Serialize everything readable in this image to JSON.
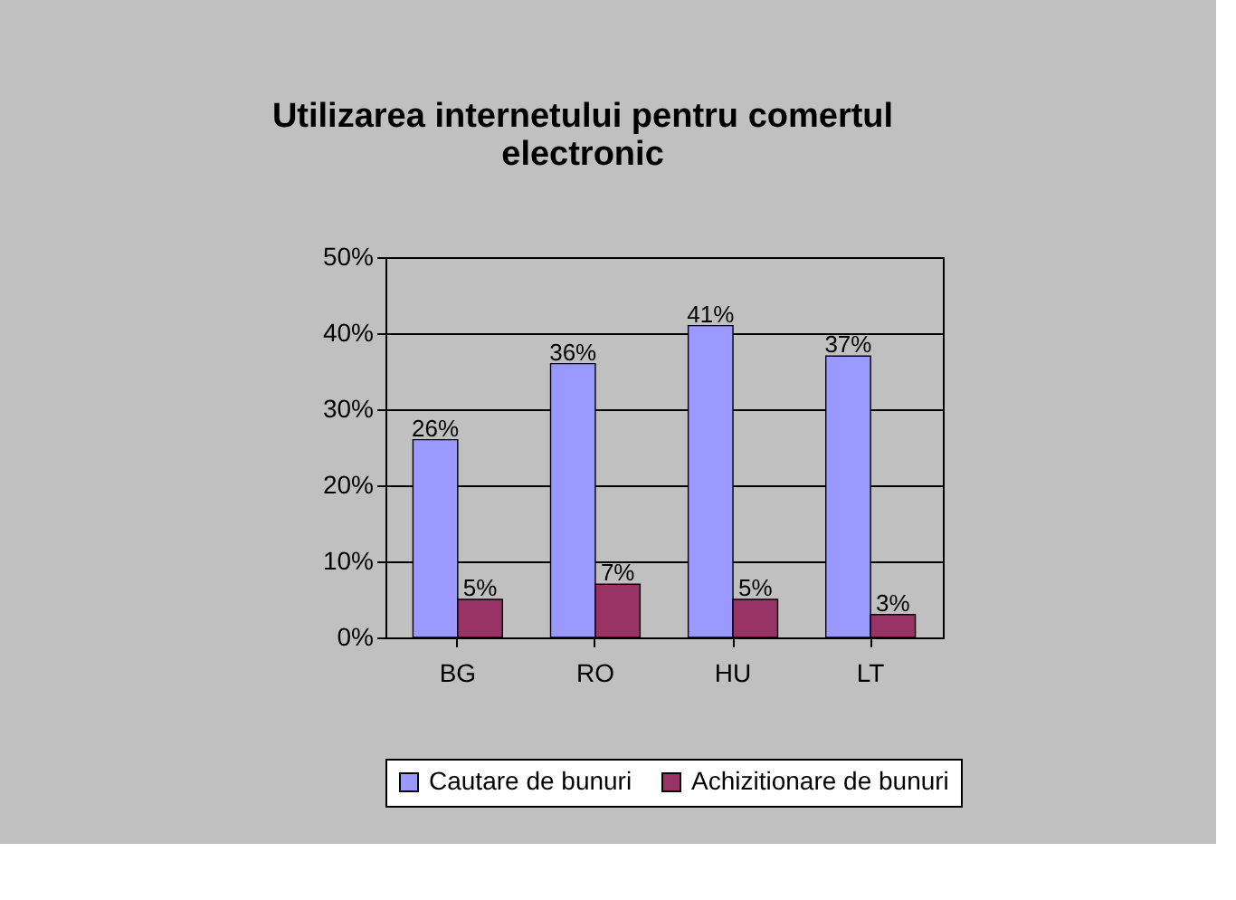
{
  "chart_data": {
    "type": "bar",
    "title": "Utilizarea internetului pentru comertul electronic",
    "categories": [
      "BG",
      "RO",
      "HU",
      "LT"
    ],
    "series": [
      {
        "name": "Cautare de bunuri",
        "color": "#9999ff",
        "values": [
          26,
          36,
          41,
          37
        ],
        "value_labels": [
          "26%",
          "36%",
          "41%",
          "37%"
        ]
      },
      {
        "name": "Achizitionare de bunuri",
        "color": "#993366",
        "values": [
          5,
          7,
          5,
          3
        ],
        "value_labels": [
          "5%",
          "7%",
          "5%",
          "3%"
        ]
      }
    ],
    "ylim": [
      0,
      50
    ],
    "yticks": [
      {
        "value": 0,
        "label": "0%"
      },
      {
        "value": 10,
        "label": "10%"
      },
      {
        "value": 20,
        "label": "20%"
      },
      {
        "value": 30,
        "label": "30%"
      },
      {
        "value": 40,
        "label": "40%"
      },
      {
        "value": 50,
        "label": "50%"
      }
    ],
    "grid": "y",
    "legend": "bottom"
  }
}
